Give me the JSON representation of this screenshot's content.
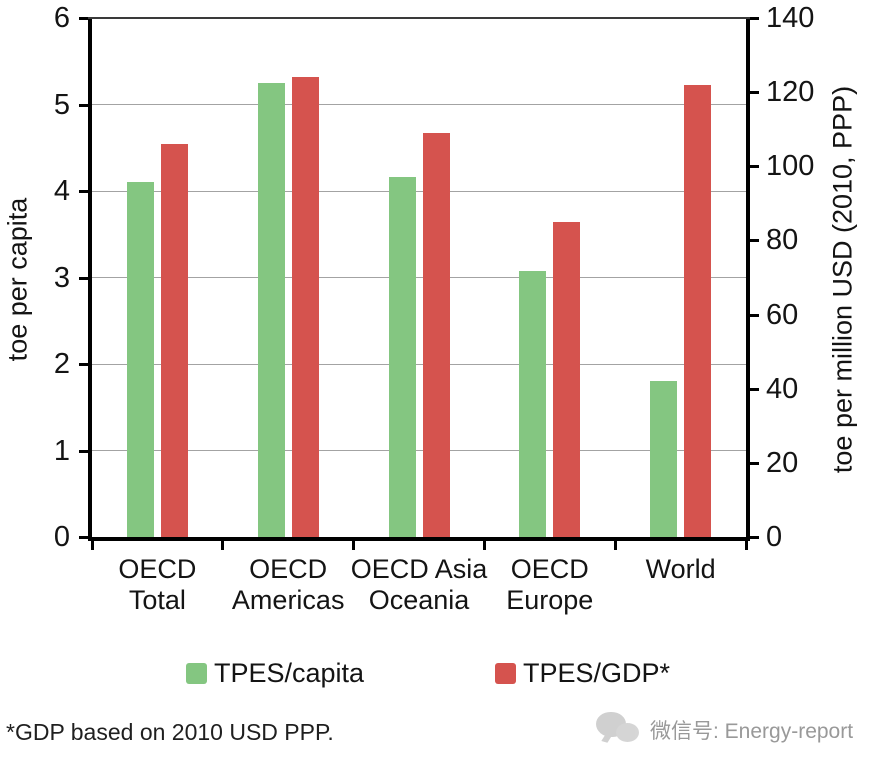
{
  "chart_data": {
    "type": "bar",
    "title": "",
    "categories": [
      "OECD Total",
      "OECD Americas",
      "OECD Asia Oceania",
      "OECD Europe",
      "World"
    ],
    "category_lines": [
      [
        "OECD",
        "Total"
      ],
      [
        "OECD",
        "Americas"
      ],
      [
        "OECD Asia",
        "Oceania"
      ],
      [
        "OECD",
        "Europe"
      ],
      [
        "World"
      ]
    ],
    "series": [
      {
        "name": "TPES/capita",
        "axis": "left",
        "color": "#84c681",
        "values": [
          4.1,
          5.25,
          4.16,
          3.07,
          1.8
        ]
      },
      {
        "name": "TPES/GDP*",
        "axis": "right",
        "color": "#d5534e",
        "values": [
          106,
          124,
          109,
          85,
          122
        ]
      }
    ],
    "left_axis": {
      "label": "toe per capita",
      "min": 0,
      "max": 6,
      "tick_step": 1,
      "ticks": [
        0,
        1,
        2,
        3,
        4,
        5,
        6
      ]
    },
    "right_axis": {
      "label": "toe per million USD (2010, PPP)",
      "min": 0,
      "max": 140,
      "tick_step": 20,
      "ticks": [
        0,
        20,
        40,
        60,
        80,
        100,
        120,
        140
      ]
    },
    "grid": "horizontal gridlines at left-axis values 1-5",
    "legend_position": "bottom"
  },
  "footnote": "*GDP based on 2010 USD PPP.",
  "watermark": {
    "icon": "wechat-icon",
    "text": "微信号: Energy-report"
  }
}
